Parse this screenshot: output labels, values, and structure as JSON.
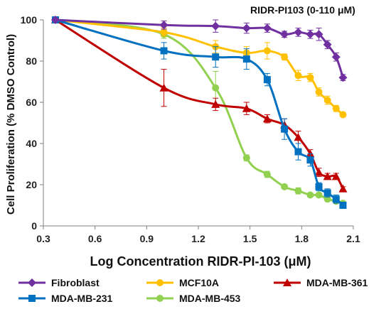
{
  "chart_data": {
    "type": "line",
    "title": "RIDR-PI103 (0-110 μM)",
    "xlabel": "Log Concentration RIDR-PI-103 (μM)",
    "ylabel": "Cell Proliferation (% DMSO Control)",
    "xlim": [
      0.3,
      2.1
    ],
    "ylim": [
      0,
      100
    ],
    "xticks": [
      "0.3",
      "0.6",
      "0.9",
      "1.2",
      "1.5",
      "1.8",
      "2.1"
    ],
    "xtick_values": [
      0.3,
      0.6,
      0.9,
      1.2,
      1.5,
      1.8,
      2.1
    ],
    "yticks": [
      "0",
      "20",
      "40",
      "60",
      "80",
      "100"
    ],
    "ytick_values": [
      0,
      20,
      40,
      60,
      80,
      100
    ],
    "grid": false,
    "legend_position": "bottom",
    "series": [
      {
        "name": "Fibroblast",
        "color": "#7030a0",
        "marker": "diamond",
        "x": [
          0.37,
          1.0,
          1.3,
          1.48,
          1.6,
          1.7,
          1.78,
          1.85,
          1.9,
          1.95,
          2.0,
          2.04
        ],
        "y": [
          100,
          97.5,
          97,
          96,
          96,
          93,
          94,
          93,
          93,
          88,
          82,
          72
        ],
        "err": [
          0,
          2,
          3,
          2.5,
          2,
          1.5,
          2,
          2,
          3,
          2,
          2,
          1.5
        ]
      },
      {
        "name": "MCF10A",
        "color": "#ffc000",
        "marker": "circle",
        "x": [
          0.37,
          1.0,
          1.3,
          1.48,
          1.6,
          1.7,
          1.78,
          1.85,
          1.9,
          1.95,
          2.0,
          2.04
        ],
        "y": [
          100,
          94,
          87,
          84,
          85,
          82,
          73,
          72,
          65,
          61,
          57,
          54
        ],
        "err": [
          0,
          2,
          3,
          3,
          4,
          1.5,
          2.5,
          2,
          2,
          2,
          1.5,
          1
        ]
      },
      {
        "name": "MDA-MB-361",
        "color": "#c00000",
        "marker": "triangle",
        "x": [
          0.37,
          1.0,
          1.3,
          1.48,
          1.6,
          1.7,
          1.78,
          1.85,
          1.9,
          1.95,
          2.0,
          2.04
        ],
        "y": [
          100,
          67,
          59,
          57,
          52,
          49,
          43,
          35,
          26,
          24,
          24,
          18
        ],
        "err": [
          0,
          9,
          3,
          3,
          2,
          3,
          3,
          2,
          2,
          1.5,
          1.5,
          1
        ]
      },
      {
        "name": "MDA-MB-231",
        "color": "#0070c0",
        "marker": "square",
        "x": [
          0.37,
          1.0,
          1.3,
          1.48,
          1.6,
          1.7,
          1.78,
          1.85,
          1.9,
          1.95,
          2.0,
          2.04
        ],
        "y": [
          100,
          85,
          82,
          81,
          71,
          47,
          36,
          32,
          19,
          16,
          13,
          10
        ],
        "err": [
          0,
          4,
          5,
          5,
          3,
          5,
          4,
          3,
          2,
          2,
          2,
          1
        ]
      },
      {
        "name": "MDA-MB-453",
        "color": "#92d050",
        "marker": "circle",
        "x": [
          0.37,
          1.0,
          1.3,
          1.48,
          1.6,
          1.7,
          1.78,
          1.85,
          1.9,
          1.95,
          2.0,
          2.04
        ],
        "y": [
          100,
          93,
          67,
          33,
          25,
          19,
          17,
          15,
          15,
          13,
          12,
          11
        ],
        "err": [
          0,
          2,
          8,
          1.5,
          1.5,
          1,
          1.5,
          1,
          1,
          1,
          1,
          1
        ]
      }
    ]
  }
}
